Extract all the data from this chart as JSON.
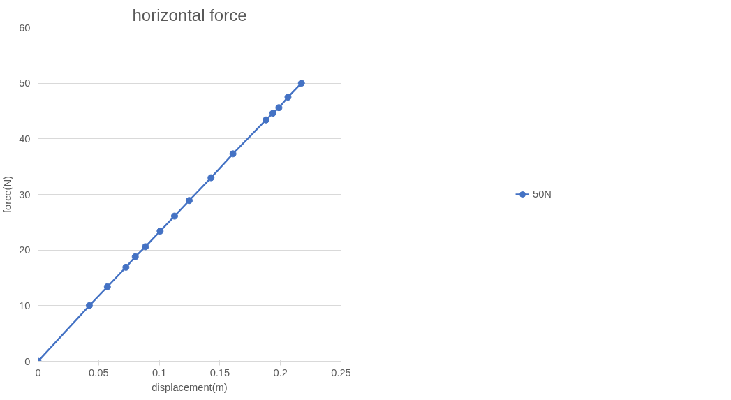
{
  "chart_data": {
    "type": "line",
    "title": "horizontal force",
    "xlabel": "displacement(m)",
    "ylabel": "force(N)",
    "xlim": [
      0,
      0.25
    ],
    "xticks": [
      0,
      0.05,
      0.1,
      0.15,
      0.2,
      0.25
    ],
    "ylim": [
      0,
      60
    ],
    "yticks": [
      0,
      10,
      20,
      30,
      40,
      50,
      60
    ],
    "grid": "y",
    "legend": "right",
    "marker": "circle",
    "line_style": "solid",
    "series": [
      {
        "name": "50N",
        "color": "#4472c4",
        "x": [
          0,
          0.0423,
          0.0572,
          0.0725,
          0.0802,
          0.0886,
          0.1007,
          0.1126,
          0.1247,
          0.1427,
          0.1608,
          0.1881,
          0.1937,
          0.1987,
          0.2062,
          0.2173
        ],
        "values": [
          0,
          10,
          13.4,
          16.9,
          18.8,
          20.6,
          23.4,
          26.1,
          28.9,
          33.0,
          37.3,
          43.4,
          44.6,
          45.6,
          47.5,
          50
        ]
      }
    ]
  }
}
